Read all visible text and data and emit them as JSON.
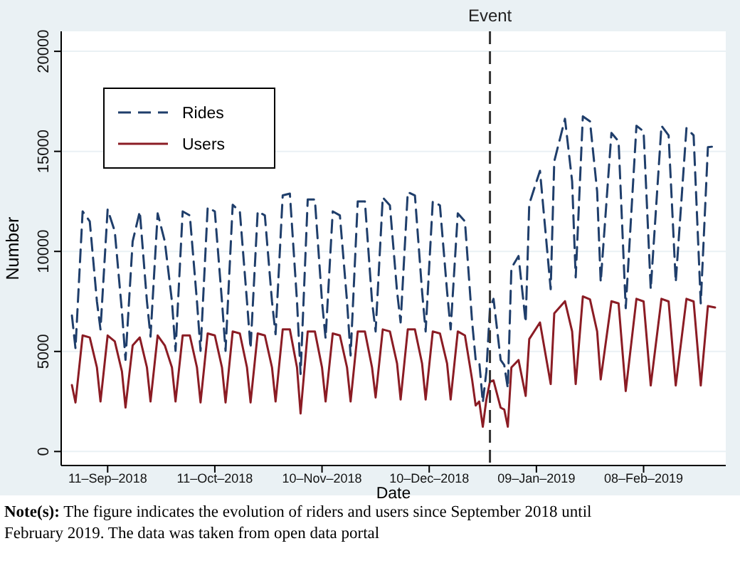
{
  "chart_data": {
    "type": "line",
    "xlabel": "Date",
    "ylabel": "Number",
    "xlim": [
      "2018-08-29",
      "2019-03-03"
    ],
    "ylim": [
      -700,
      21000
    ],
    "xticks": [
      {
        "value": "2018-09-11",
        "label": "11‒Sep‒2018"
      },
      {
        "value": "2018-10-11",
        "label": "11‒Oct‒2018"
      },
      {
        "value": "2018-11-10",
        "label": "10‒Nov‒2018"
      },
      {
        "value": "2018-12-10",
        "label": "10‒Dec‒2018"
      },
      {
        "value": "2019-01-09",
        "label": "09‒Jan‒2019"
      },
      {
        "value": "2019-02-08",
        "label": "08‒Feb‒2019"
      }
    ],
    "yticks": [
      0,
      5000,
      10000,
      15000,
      20000
    ],
    "grid": "y",
    "legend": "top left",
    "ref_lines": [
      {
        "axis": "x",
        "value": "2018-12-27",
        "label": "Event",
        "line_style": "dashed",
        "color": "#333333"
      }
    ],
    "annotations": [
      "Note(s): The figure indicates the evolution of riders and users since September 2018 until February 2019. The data was taken from open data portal"
    ],
    "x": [
      "2018-09-01",
      "2018-09-02",
      "2018-09-04",
      "2018-09-06",
      "2018-09-08",
      "2018-09-09",
      "2018-09-11",
      "2018-09-13",
      "2018-09-15",
      "2018-09-16",
      "2018-09-18",
      "2018-09-20",
      "2018-09-22",
      "2018-09-23",
      "2018-09-25",
      "2018-09-27",
      "2018-09-29",
      "2018-09-30",
      "2018-10-02",
      "2018-10-04",
      "2018-10-06",
      "2018-10-07",
      "2018-10-09",
      "2018-10-11",
      "2018-10-13",
      "2018-10-14",
      "2018-10-16",
      "2018-10-18",
      "2018-10-20",
      "2018-10-21",
      "2018-10-23",
      "2018-10-25",
      "2018-10-27",
      "2018-10-28",
      "2018-10-30",
      "2018-11-01",
      "2018-11-03",
      "2018-11-04",
      "2018-11-06",
      "2018-11-08",
      "2018-11-10",
      "2018-11-11",
      "2018-11-13",
      "2018-11-15",
      "2018-11-17",
      "2018-11-18",
      "2018-11-20",
      "2018-11-22",
      "2018-11-24",
      "2018-11-25",
      "2018-11-27",
      "2018-11-29",
      "2018-12-01",
      "2018-12-02",
      "2018-12-04",
      "2018-12-06",
      "2018-12-08",
      "2018-12-09",
      "2018-12-11",
      "2018-12-13",
      "2018-12-15",
      "2018-12-16",
      "2018-12-18",
      "2018-12-20",
      "2018-12-22",
      "2018-12-23",
      "2018-12-24",
      "2018-12-25",
      "2018-12-26",
      "2018-12-27",
      "2018-12-28",
      "2018-12-30",
      "2018-12-31",
      "2019-01-01",
      "2019-01-02",
      "2019-01-04",
      "2019-01-06",
      "2019-01-07",
      "2019-01-10",
      "2019-01-13",
      "2019-01-14",
      "2019-01-17",
      "2019-01-19",
      "2019-01-20",
      "2019-01-22",
      "2019-01-24",
      "2019-01-26",
      "2019-01-27",
      "2019-01-30",
      "2019-02-01",
      "2019-02-03",
      "2019-02-06",
      "2019-02-08",
      "2019-02-10",
      "2019-02-13",
      "2019-02-15",
      "2019-02-17",
      "2019-02-20",
      "2019-02-22",
      "2019-02-24",
      "2019-02-26",
      "2019-02-28"
    ],
    "series": [
      {
        "name": "Rides",
        "color": "#1f3e6b",
        "line_style": "dashed",
        "values": [
          6800,
          5150,
          12000,
          11500,
          7500,
          6100,
          12100,
          11000,
          7000,
          4580,
          10500,
          12000,
          7500,
          5740,
          11900,
          10500,
          7500,
          5030,
          12000,
          11800,
          7500,
          5030,
          12200,
          12000,
          7500,
          5030,
          12330,
          12000,
          7500,
          5150,
          12000,
          11800,
          7500,
          5860,
          12800,
          12890,
          7500,
          3870,
          12600,
          12600,
          7500,
          5650,
          12000,
          11800,
          7500,
          4800,
          12500,
          12500,
          7500,
          6000,
          12700,
          12300,
          8000,
          6450,
          12960,
          12800,
          8000,
          6000,
          12500,
          12300,
          8000,
          6100,
          11900,
          11500,
          6500,
          4600,
          4500,
          2450,
          4000,
          7160,
          7630,
          4570,
          4320,
          3160,
          9170,
          9770,
          6450,
          12370,
          14030,
          8110,
          14500,
          16630,
          13500,
          8700,
          16750,
          16500,
          13000,
          8470,
          15920,
          15500,
          7160,
          16280,
          16000,
          8110,
          16280,
          15800,
          8470,
          16160,
          15800,
          7400,
          15210,
          15250
        ]
      },
      {
        "name": "Users",
        "color": "#8b1c24",
        "line_style": "solid",
        "values": [
          3320,
          2450,
          5800,
          5700,
          4200,
          2500,
          5800,
          5500,
          4000,
          2200,
          5300,
          5700,
          4200,
          2500,
          5800,
          5300,
          4200,
          2500,
          5800,
          5800,
          4200,
          2450,
          5900,
          5800,
          4200,
          2450,
          6000,
          5900,
          4200,
          2450,
          5900,
          5800,
          4200,
          2500,
          6100,
          6100,
          4200,
          1900,
          6000,
          6000,
          4200,
          2500,
          5900,
          5800,
          4200,
          2500,
          6000,
          6000,
          4200,
          2700,
          6100,
          6000,
          4400,
          2600,
          6100,
          6100,
          4400,
          2600,
          6000,
          5900,
          4400,
          2600,
          6000,
          5800,
          3600,
          2300,
          2500,
          1240,
          2600,
          3490,
          3550,
          2190,
          2100,
          1240,
          4200,
          4570,
          2780,
          5620,
          6450,
          3370,
          6900,
          7510,
          6000,
          3370,
          7750,
          7600,
          6000,
          3600,
          7510,
          7400,
          3020,
          7630,
          7500,
          3300,
          7630,
          7500,
          3300,
          7630,
          7500,
          3300,
          7270,
          7200
        ]
      }
    ]
  }
}
